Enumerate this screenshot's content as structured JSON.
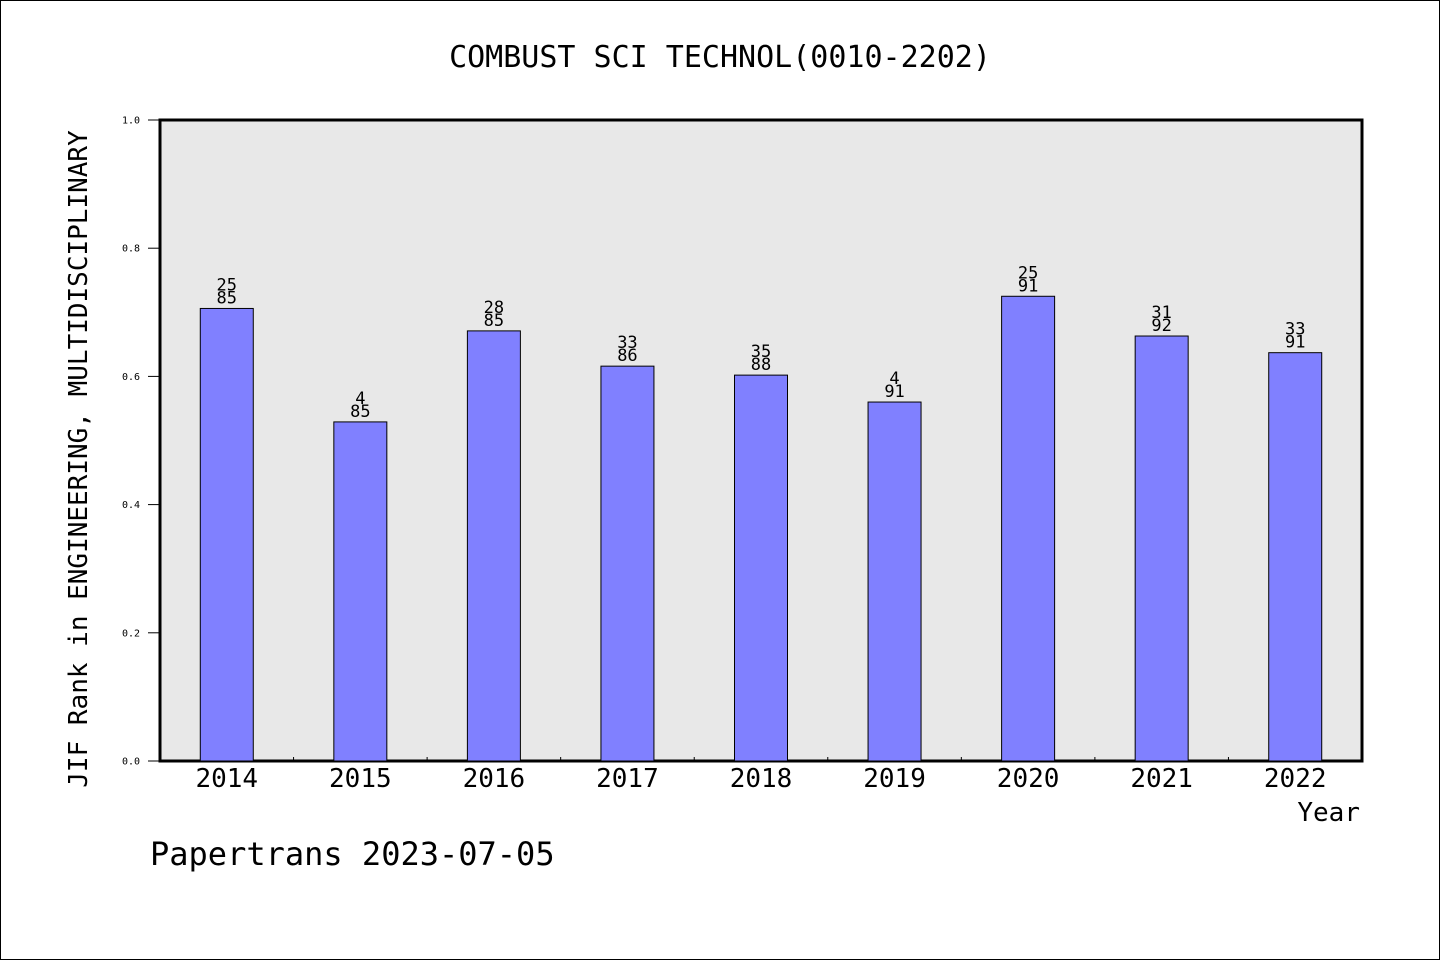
{
  "chart_data": {
    "type": "bar",
    "title": "COMBUST SCI TECHNOL(0010-2202)",
    "ylabel": "JIF Rank in ENGINEERING, MULTIDISCIPLINARY",
    "xlabel": "Year",
    "ylim": [
      0,
      1
    ],
    "yticks": [
      "0.0",
      "0.2",
      "0.4",
      "0.6",
      "0.8",
      "1.0"
    ],
    "categories": [
      "2014",
      "2015",
      "2016",
      "2017",
      "2018",
      "2019",
      "2020",
      "2021",
      "2022"
    ],
    "values": [
      0.706,
      0.529,
      0.671,
      0.616,
      0.602,
      0.56,
      0.725,
      0.663,
      0.637
    ],
    "labels_top": [
      "25",
      "4",
      "28",
      "33",
      "35",
      "4",
      "25",
      "31",
      "33"
    ],
    "labels_bottom": [
      "85",
      "85",
      "85",
      "86",
      "88",
      "91",
      "91",
      "92",
      "91"
    ],
    "grid": false,
    "plot_background": "#e8e8e8",
    "bar_color": "#8080ff"
  },
  "footer": "Papertrans 2023-07-05"
}
